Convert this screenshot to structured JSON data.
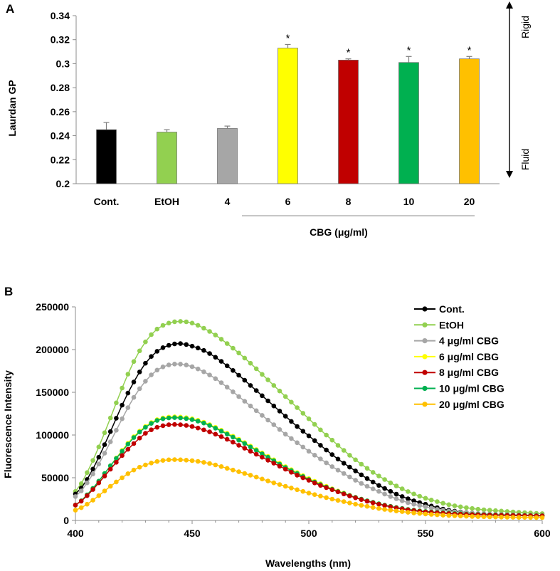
{
  "chart_data": [
    {
      "panel_label": "A",
      "type": "bar",
      "ylabel": "Laurdan GP",
      "ylim": [
        0.2,
        0.34
      ],
      "yticks": [
        0.2,
        0.22,
        0.24,
        0.26,
        0.28,
        0.3,
        0.32,
        0.34
      ],
      "ytick_labels": [
        "0.2",
        "0.22",
        "0.24",
        "0.26",
        "0.28",
        "0.3",
        "0.32",
        "0.34"
      ],
      "categories": [
        "Cont.",
        "EtOH",
        "4",
        "6",
        "8",
        "10",
        "20"
      ],
      "values": [
        0.245,
        0.243,
        0.246,
        0.313,
        0.303,
        0.301,
        0.304
      ],
      "errors": [
        0.006,
        0.002,
        0.002,
        0.003,
        0.001,
        0.005,
        0.002
      ],
      "colors": [
        "#000000",
        "#92D050",
        "#A6A6A6",
        "#FFFF00",
        "#C00000",
        "#00B050",
        "#FFC000"
      ],
      "significance": [
        "",
        "",
        "",
        "*",
        "*",
        "*",
        "*"
      ],
      "group_label": "CBG (μg/ml)",
      "arrow_top_label": "Rigid",
      "arrow_bottom_label": "Fluid"
    },
    {
      "panel_label": "B",
      "type": "line",
      "xlabel": "Wavelengths (nm)",
      "ylabel": "Fluorescence Intensity",
      "xlim": [
        400,
        600
      ],
      "ylim": [
        0,
        250000
      ],
      "xticks": [
        400,
        450,
        500,
        550,
        600
      ],
      "xtick_labels": [
        "400",
        "450",
        "500",
        "550",
        "600"
      ],
      "yticks": [
        0,
        50000,
        100000,
        150000,
        200000,
        250000
      ],
      "ytick_labels": [
        "0",
        "50000",
        "100000",
        "150000",
        "200000",
        "250000"
      ],
      "x": [
        400,
        405,
        410,
        415,
        420,
        425,
        430,
        435,
        440,
        445,
        450,
        455,
        460,
        465,
        470,
        475,
        480,
        485,
        490,
        495,
        500,
        505,
        510,
        515,
        520,
        525,
        530,
        535,
        540,
        545,
        550,
        555,
        560,
        565,
        570,
        575,
        580,
        585,
        590,
        595,
        600
      ],
      "series": [
        {
          "name": "Cont.",
          "color": "#000000",
          "peak_x": 444,
          "values": [
            31000,
            48000,
            74000,
            104000,
            135000,
            162000,
            184000,
            198000,
            205000,
            207000,
            204000,
            199000,
            191000,
            181000,
            170000,
            158000,
            146000,
            134000,
            122000,
            110000,
            99000,
            88000,
            77000,
            67000,
            58000,
            49000,
            41000,
            34000,
            28000,
            23000,
            19000,
            15000,
            12000,
            10000,
            8500,
            7500,
            6800,
            6300,
            6000,
            5800,
            5600
          ]
        },
        {
          "name": "EtOH",
          "color": "#92D050",
          "peak_x": 445,
          "values": [
            34000,
            56000,
            86000,
            120000,
            155000,
            186000,
            209000,
            224000,
            231000,
            233000,
            231000,
            225000,
            217000,
            207000,
            196000,
            184000,
            171000,
            158000,
            145000,
            132000,
            119000,
            106000,
            94000,
            82000,
            71000,
            61000,
            52000,
            44000,
            37000,
            31000,
            26000,
            22000,
            18500,
            16000,
            14000,
            12500,
            11500,
            10500,
            9500,
            8800,
            8000
          ]
        },
        {
          "name": "4 μg/ml CBG",
          "color": "#A6A6A6",
          "peak_x": 444,
          "values": [
            28000,
            44000,
            66000,
            92000,
            119000,
            144000,
            163000,
            176000,
            182000,
            183000,
            180000,
            174000,
            166000,
            156000,
            145000,
            134000,
            123000,
            112000,
            101000,
            91000,
            81000,
            72000,
            63000,
            55000,
            47000,
            40000,
            34000,
            28000,
            23000,
            19000,
            16000,
            13000,
            11000,
            9500,
            8500,
            7800,
            7200,
            6800,
            6500,
            6200,
            6000
          ]
        },
        {
          "name": "6 μg/ml CBG",
          "color": "#FFFF00",
          "peak_x": 443,
          "values": [
            18000,
            30000,
            46000,
            64000,
            82000,
            98000,
            110000,
            118000,
            121000,
            121000,
            119000,
            115000,
            109000,
            102000,
            95000,
            87000,
            79000,
            71000,
            63000,
            56000,
            49000,
            43000,
            37000,
            32000,
            27000,
            23000,
            19500,
            16500,
            14000,
            12000,
            10500,
            9500,
            8500,
            7800,
            7200,
            6800,
            6500,
            6200,
            6000,
            5800,
            5600
          ]
        },
        {
          "name": "8 μg/ml CBG",
          "color": "#C00000",
          "peak_x": 442,
          "values": [
            18000,
            29000,
            44000,
            60000,
            76000,
            90000,
            102000,
            109000,
            112000,
            112000,
            110000,
            106000,
            101000,
            95000,
            88000,
            81000,
            74000,
            67000,
            60000,
            53000,
            47000,
            41000,
            36000,
            31000,
            26500,
            22500,
            19000,
            16000,
            13500,
            11500,
            10000,
            9000,
            8000,
            7300,
            6800,
            6400,
            6100,
            5900,
            5700,
            5500,
            5300
          ]
        },
        {
          "name": "10 μg/ml CBG",
          "color": "#00B050",
          "peak_x": 443,
          "values": [
            18000,
            30000,
            46000,
            64000,
            81000,
            97000,
            109000,
            117000,
            120000,
            120000,
            118000,
            114000,
            108000,
            101000,
            94000,
            86000,
            78000,
            70000,
            62000,
            55000,
            48000,
            42000,
            36500,
            31500,
            27000,
            23000,
            19500,
            16500,
            14000,
            12000,
            10500,
            9500,
            8500,
            7800,
            7200,
            6800,
            6500,
            6200,
            6000,
            5800,
            5600
          ]
        },
        {
          "name": "20 μg/ml CBG",
          "color": "#FFC000",
          "peak_x": 443,
          "values": [
            12000,
            19000,
            29000,
            40000,
            50000,
            59000,
            65000,
            69000,
            71000,
            71000,
            70000,
            68000,
            65000,
            61000,
            57000,
            53000,
            48500,
            44000,
            40000,
            36000,
            32000,
            28500,
            25000,
            22000,
            19000,
            16500,
            14000,
            12000,
            10300,
            8800,
            7600,
            6600,
            5800,
            5200,
            4700,
            4300,
            4000,
            3800,
            3600,
            3500,
            3400
          ]
        }
      ]
    }
  ]
}
